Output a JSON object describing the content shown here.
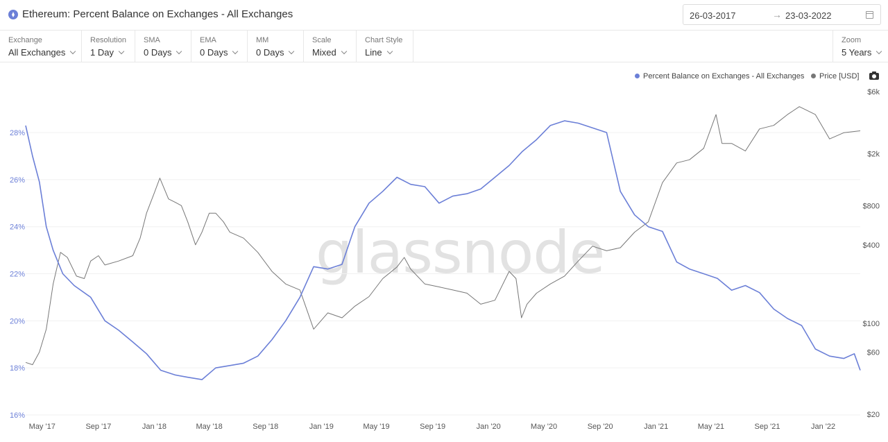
{
  "header": {
    "title": "Ethereum: Percent Balance on Exchanges - All Exchanges",
    "date_from": "26-03-2017",
    "date_to": "23-03-2022"
  },
  "toolbar": [
    {
      "label": "Exchange",
      "value": "All Exchanges"
    },
    {
      "label": "Resolution",
      "value": "1 Day"
    },
    {
      "label": "SMA",
      "value": "0 Days"
    },
    {
      "label": "EMA",
      "value": "0 Days"
    },
    {
      "label": "MM",
      "value": "0 Days"
    },
    {
      "label": "Scale",
      "value": "Mixed"
    },
    {
      "label": "Chart Style",
      "value": "Line"
    }
  ],
  "zoom": {
    "label": "Zoom",
    "value": "5 Years"
  },
  "legend": {
    "series1": "Percent Balance on Exchanges - All Exchanges",
    "series2": "Price [USD]"
  },
  "watermark": "glassnode",
  "colors": {
    "balance": "#6b7fd7",
    "price": "#777777"
  },
  "icons": {
    "asset": "ethereum-icon",
    "date": "calendar-icon",
    "export": "camera-icon"
  },
  "chart_data": {
    "type": "line",
    "x_range": [
      "2017-03-26",
      "2022-03-23"
    ],
    "x_ticks": [
      "May '17",
      "Sep '17",
      "Jan '18",
      "May '18",
      "Sep '18",
      "Jan '19",
      "May '19",
      "Sep '19",
      "Jan '20",
      "May '20",
      "Sep '20",
      "Jan '21",
      "May '21",
      "Sep '21",
      "Jan '22"
    ],
    "left_axis": {
      "ticks": [
        "16%",
        "18%",
        "20%",
        "22%",
        "24%",
        "26%",
        "28%"
      ],
      "range": [
        16,
        29.8
      ]
    },
    "right_axis": {
      "scale": "log",
      "ticks": [
        "$20",
        "$60",
        "$100",
        "$400",
        "$800",
        "$2k",
        "$6k"
      ],
      "range": [
        20,
        6000
      ]
    },
    "series": [
      {
        "name": "Percent Balance on Exchanges - All Exchanges",
        "axis": "left",
        "x": [
          "2017-03-26",
          "2017-04-10",
          "2017-04-25",
          "2017-05-10",
          "2017-05-25",
          "2017-06-15",
          "2017-07-10",
          "2017-08-15",
          "2017-09-15",
          "2017-10-15",
          "2017-11-15",
          "2017-12-15",
          "2018-01-15",
          "2018-02-15",
          "2018-03-15",
          "2018-04-15",
          "2018-05-15",
          "2018-06-15",
          "2018-07-15",
          "2018-08-15",
          "2018-09-15",
          "2018-10-15",
          "2018-11-15",
          "2018-12-15",
          "2019-01-15",
          "2019-02-15",
          "2019-03-15",
          "2019-04-15",
          "2019-05-15",
          "2019-06-15",
          "2019-07-15",
          "2019-08-15",
          "2019-09-15",
          "2019-10-15",
          "2019-11-15",
          "2019-12-15",
          "2020-01-15",
          "2020-02-15",
          "2020-03-15",
          "2020-04-15",
          "2020-05-15",
          "2020-06-15",
          "2020-07-15",
          "2020-08-15",
          "2020-09-15",
          "2020-10-15",
          "2020-11-15",
          "2020-12-15",
          "2021-01-15",
          "2021-02-15",
          "2021-03-15",
          "2021-04-15",
          "2021-05-15",
          "2021-06-15",
          "2021-07-15",
          "2021-08-15",
          "2021-09-15",
          "2021-10-15",
          "2021-11-15",
          "2021-12-15",
          "2022-01-15",
          "2022-02-15",
          "2022-03-10",
          "2022-03-23"
        ],
        "values": [
          28.3,
          27.0,
          25.9,
          24.0,
          23.0,
          22.0,
          21.5,
          21.0,
          20.0,
          19.6,
          19.1,
          18.6,
          17.9,
          17.7,
          17.6,
          17.5,
          18.0,
          18.1,
          18.2,
          18.5,
          19.2,
          20.0,
          21.0,
          22.3,
          22.2,
          22.4,
          24.0,
          25.0,
          25.5,
          26.1,
          25.8,
          25.7,
          25.0,
          25.3,
          25.4,
          25.6,
          26.1,
          26.6,
          27.2,
          27.7,
          28.3,
          28.5,
          28.4,
          28.2,
          28.0,
          25.5,
          24.5,
          24.0,
          23.8,
          22.5,
          22.2,
          22.0,
          21.8,
          21.3,
          21.5,
          21.2,
          20.5,
          20.1,
          19.8,
          18.8,
          18.5,
          18.4,
          18.6,
          17.9
        ]
      },
      {
        "name": "Price [USD]",
        "axis": "right",
        "x": [
          "2017-03-26",
          "2017-04-10",
          "2017-04-25",
          "2017-05-10",
          "2017-05-25",
          "2017-06-10",
          "2017-06-25",
          "2017-07-15",
          "2017-08-01",
          "2017-08-15",
          "2017-09-01",
          "2017-09-15",
          "2017-10-15",
          "2017-11-15",
          "2017-12-01",
          "2017-12-15",
          "2018-01-01",
          "2018-01-13",
          "2018-02-01",
          "2018-02-15",
          "2018-03-01",
          "2018-03-15",
          "2018-04-01",
          "2018-04-15",
          "2018-05-01",
          "2018-05-15",
          "2018-06-01",
          "2018-06-15",
          "2018-07-15",
          "2018-08-15",
          "2018-09-15",
          "2018-10-15",
          "2018-11-15",
          "2018-12-15",
          "2019-01-15",
          "2019-02-15",
          "2019-03-15",
          "2019-04-15",
          "2019-05-15",
          "2019-06-15",
          "2019-07-01",
          "2019-07-15",
          "2019-08-15",
          "2019-09-15",
          "2019-10-15",
          "2019-11-15",
          "2019-12-15",
          "2020-01-15",
          "2020-02-15",
          "2020-03-01",
          "2020-03-13",
          "2020-03-25",
          "2020-04-15",
          "2020-05-15",
          "2020-06-15",
          "2020-07-15",
          "2020-08-15",
          "2020-09-15",
          "2020-10-15",
          "2020-11-15",
          "2020-12-15",
          "2021-01-15",
          "2021-02-15",
          "2021-03-15",
          "2021-04-15",
          "2021-05-12",
          "2021-05-25",
          "2021-06-15",
          "2021-07-15",
          "2021-08-15",
          "2021-09-15",
          "2021-10-15",
          "2021-11-10",
          "2021-12-15",
          "2022-01-15",
          "2022-02-15",
          "2022-03-23"
        ],
        "values": [
          50,
          48,
          60,
          90,
          200,
          350,
          320,
          230,
          220,
          300,
          330,
          280,
          300,
          330,
          450,
          700,
          1000,
          1300,
          900,
          850,
          800,
          600,
          400,
          500,
          700,
          700,
          600,
          500,
          450,
          350,
          250,
          200,
          180,
          90,
          120,
          110,
          135,
          160,
          220,
          270,
          320,
          260,
          200,
          190,
          180,
          170,
          140,
          150,
          250,
          220,
          110,
          140,
          170,
          200,
          230,
          300,
          390,
          360,
          380,
          500,
          600,
          1200,
          1700,
          1800,
          2200,
          4000,
          2400,
          2400,
          2100,
          3100,
          3300,
          4000,
          4600,
          4000,
          2600,
          2900,
          3000
        ]
      }
    ]
  }
}
